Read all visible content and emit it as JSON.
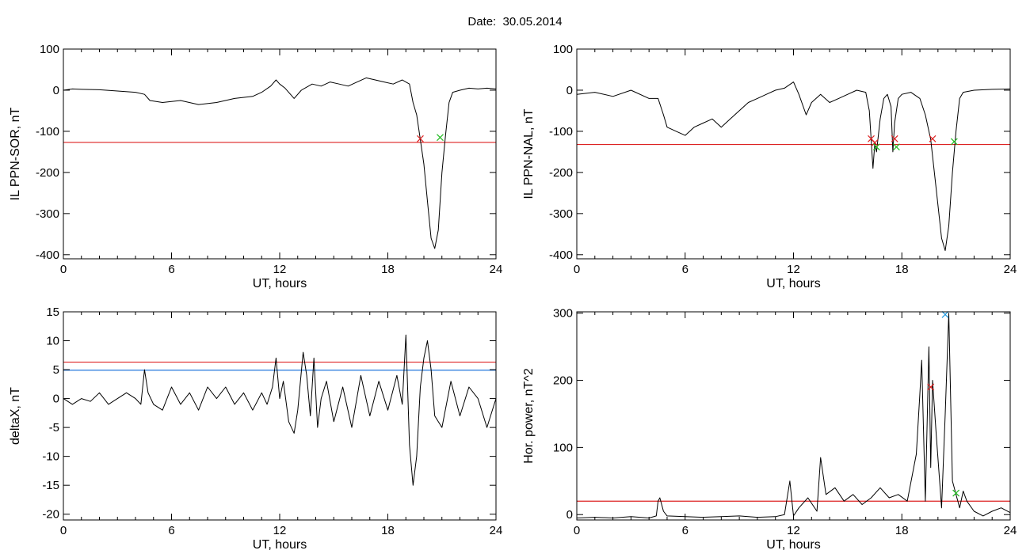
{
  "title": "Date:  30.05.2014",
  "colors": {
    "threshold_red": "#dd2222",
    "threshold_blue": "#2277dd",
    "trace": "#000000",
    "highlight": "#3399ee",
    "marker_red": "#dd2222",
    "marker_green": "#22bb22",
    "marker_blue": "#2299dd"
  },
  "chart_data": [
    {
      "type": "line",
      "ylabel": "IL PPN-SOR, nT",
      "xlabel": "UT, hours",
      "xlim": [
        0,
        24
      ],
      "ylim": [
        -410,
        100
      ],
      "xticks": [
        0,
        6,
        12,
        18,
        24
      ],
      "yticks": [
        -400,
        -300,
        -200,
        -100,
        0,
        100
      ],
      "thresholds": [
        {
          "y": -127,
          "color": "red"
        }
      ],
      "series": [
        {
          "x": [
            0,
            0.5,
            1,
            2,
            3,
            4,
            4.5,
            4.8,
            5.5,
            6.5,
            7.5,
            8.5,
            9.5,
            10.5,
            11,
            11.5,
            11.8,
            12,
            12.3,
            12.8,
            13.2,
            13.8,
            14.3,
            14.8,
            15.3,
            15.8,
            16.3,
            16.8,
            17.3,
            17.8,
            18.3,
            18.8,
            19.2,
            19.4,
            19.6,
            19.8,
            20.0,
            20.2,
            20.4,
            20.6,
            20.8,
            21.0,
            21.2,
            21.4,
            21.6,
            22,
            22.5,
            23,
            23.5,
            24
          ],
          "y": [
            0,
            3,
            2,
            1,
            -2,
            -5,
            -10,
            -25,
            -30,
            -25,
            -35,
            -30,
            -20,
            -15,
            -5,
            10,
            25,
            15,
            5,
            -20,
            0,
            15,
            10,
            20,
            15,
            10,
            20,
            30,
            25,
            20,
            15,
            25,
            15,
            -30,
            -60,
            -120,
            -180,
            -270,
            -360,
            -385,
            -340,
            -200,
            -110,
            -30,
            -5,
            0,
            5,
            3,
            5,
            3
          ]
        }
      ],
      "markers": [
        {
          "x": 19.8,
          "y": -118,
          "symbol": "x",
          "color": "red"
        },
        {
          "x": 20.9,
          "y": -115,
          "symbol": "x",
          "color": "green"
        }
      ]
    },
    {
      "type": "line",
      "ylabel": "IL PPN-NAL, nT",
      "xlabel": "UT, hours",
      "xlim": [
        0,
        24
      ],
      "ylim": [
        -410,
        100
      ],
      "xticks": [
        0,
        6,
        12,
        18,
        24
      ],
      "yticks": [
        -400,
        -300,
        -200,
        -100,
        0,
        100
      ],
      "thresholds": [
        {
          "y": -132,
          "color": "red"
        }
      ],
      "series": [
        {
          "x": [
            0,
            1,
            2,
            3,
            4,
            4.5,
            4.8,
            5.0,
            5.5,
            6.0,
            6.5,
            7.0,
            7.5,
            8.0,
            8.5,
            9.0,
            9.5,
            10,
            10.5,
            11,
            11.5,
            12,
            12.3,
            12.7,
            13,
            13.5,
            14,
            14.5,
            15,
            15.5,
            16,
            16.2,
            16.4,
            16.5,
            16.6,
            16.8,
            17.0,
            17.2,
            17.4,
            17.5,
            17.6,
            17.8,
            18.0,
            18.5,
            19,
            19.3,
            19.6,
            19.9,
            20.2,
            20.4,
            20.6,
            20.8,
            21.0,
            21.2,
            21.4,
            22,
            23,
            24
          ],
          "y": [
            -10,
            -5,
            -15,
            0,
            -20,
            -20,
            -60,
            -90,
            -100,
            -110,
            -90,
            -80,
            -70,
            -90,
            -70,
            -50,
            -30,
            -20,
            -10,
            0,
            5,
            20,
            -10,
            -60,
            -30,
            -10,
            -30,
            -20,
            -10,
            0,
            -5,
            -50,
            -190,
            -130,
            -150,
            -70,
            -20,
            -10,
            -40,
            -150,
            -80,
            -20,
            -10,
            -5,
            -20,
            -60,
            -120,
            -240,
            -360,
            -390,
            -330,
            -200,
            -100,
            -20,
            -5,
            0,
            2,
            3
          ]
        }
      ],
      "markers": [
        {
          "x": 16.3,
          "y": -118,
          "symbol": "x",
          "color": "red"
        },
        {
          "x": 16.5,
          "y": -128,
          "symbol": "x",
          "color": "red"
        },
        {
          "x": 16.6,
          "y": -138,
          "symbol": "x",
          "color": "green"
        },
        {
          "x": 17.6,
          "y": -118,
          "symbol": "x",
          "color": "red"
        },
        {
          "x": 17.7,
          "y": -138,
          "symbol": "x",
          "color": "green"
        },
        {
          "x": 19.7,
          "y": -118,
          "symbol": "x",
          "color": "red"
        },
        {
          "x": 20.9,
          "y": -125,
          "symbol": "x",
          "color": "green"
        }
      ]
    },
    {
      "type": "line",
      "ylabel": "deltaX, nT",
      "xlabel": "UT, hours",
      "xlim": [
        0,
        24
      ],
      "ylim": [
        -21,
        15
      ],
      "xticks": [
        0,
        6,
        12,
        18,
        24
      ],
      "yticks": [
        -20,
        -15,
        -10,
        -5,
        0,
        5,
        10,
        15
      ],
      "thresholds": [
        {
          "y": 6.3,
          "color": "red"
        },
        {
          "y": 4.9,
          "color": "blue"
        }
      ],
      "series": [
        {
          "x": [
            0,
            0.5,
            1,
            1.5,
            2,
            2.5,
            3,
            3.5,
            4,
            4.3,
            4.5,
            4.7,
            5,
            5.5,
            6,
            6.5,
            7,
            7.5,
            8,
            8.5,
            9,
            9.5,
            10,
            10.5,
            11,
            11.3,
            11.6,
            11.8,
            12,
            12.2,
            12.5,
            12.8,
            13,
            13.3,
            13.5,
            13.7,
            13.9,
            14.1,
            14.3,
            14.6,
            15,
            15.5,
            16,
            16.5,
            17,
            17.5,
            18,
            18.5,
            18.8,
            19,
            19.2,
            19.4,
            19.6,
            19.8,
            20,
            20.2,
            20.4,
            20.6,
            21,
            21.5,
            22,
            22.5,
            23,
            23.5,
            24
          ],
          "y": [
            0,
            -1,
            0,
            -0.5,
            1,
            -1,
            0,
            1,
            0,
            -1,
            5,
            1,
            -1,
            -2,
            2,
            -1,
            1,
            -2,
            2,
            0,
            2,
            -1,
            1,
            -2,
            1,
            -1,
            2,
            7,
            0,
            3,
            -4,
            -6,
            -2,
            8,
            4,
            -3,
            7,
            -5,
            0,
            3,
            -4,
            2,
            -5,
            4,
            -3,
            3,
            -2,
            4,
            -1,
            11,
            -8,
            -15,
            -10,
            2,
            7,
            10,
            5,
            -3,
            -5,
            3,
            -3,
            2,
            0,
            -5,
            0
          ]
        }
      ],
      "markers": []
    },
    {
      "type": "line",
      "ylabel": "Hor. power, nT^2",
      "xlabel": "UT, hours",
      "xlim": [
        0,
        24
      ],
      "ylim": [
        -8,
        302
      ],
      "xticks": [
        0,
        6,
        12,
        18,
        24
      ],
      "yticks": [
        0,
        100,
        200,
        300
      ],
      "thresholds": [
        {
          "y": 20,
          "color": "red"
        }
      ],
      "series": [
        {
          "x": [
            0,
            1,
            2,
            3,
            4,
            4.4,
            4.5,
            4.6,
            4.8,
            5,
            6,
            7,
            8,
            9,
            10,
            11,
            11.5,
            11.8,
            12,
            12.3,
            12.8,
            13.3,
            13.5,
            13.8,
            14.3,
            14.8,
            15.3,
            15.8,
            16.3,
            16.8,
            17.3,
            17.8,
            18.3,
            18.8,
            19,
            19.1,
            19.3,
            19.5,
            19.6,
            19.7,
            19.9,
            20.2,
            20.4,
            20.6,
            20.8,
            21,
            21.2,
            21.4,
            21.6,
            22,
            22.5,
            23,
            23.5,
            24
          ],
          "y": [
            -5,
            -4,
            -5,
            -3,
            -5,
            -2,
            20,
            25,
            5,
            -2,
            -3,
            -4,
            -3,
            -2,
            -4,
            -3,
            0,
            50,
            -2,
            10,
            25,
            5,
            85,
            30,
            40,
            20,
            30,
            15,
            25,
            40,
            25,
            30,
            20,
            90,
            180,
            230,
            20,
            250,
            70,
            200,
            120,
            10,
            150,
            300,
            50,
            30,
            10,
            35,
            20,
            5,
            -2,
            5,
            10,
            3
          ]
        }
      ],
      "markers": [
        {
          "x": 19.6,
          "y": 190,
          "symbol": "x",
          "color": "red"
        },
        {
          "x": 20.4,
          "y": 298,
          "symbol": "x",
          "color": "blue"
        },
        {
          "x": 21.0,
          "y": 32,
          "symbol": "x",
          "color": "green"
        }
      ]
    }
  ]
}
